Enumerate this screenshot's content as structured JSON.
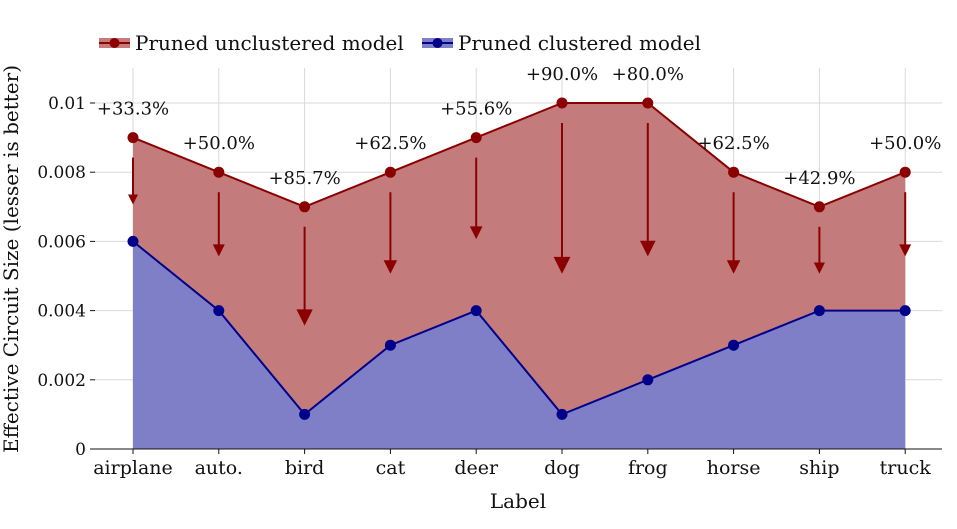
{
  "chart_data": {
    "type": "area",
    "categories": [
      "airplane",
      "auto.",
      "bird",
      "cat",
      "deer",
      "dog",
      "frog",
      "horse",
      "ship",
      "truck"
    ],
    "series": [
      {
        "name": "Pruned unclustered model",
        "values": [
          0.009,
          0.008,
          0.007,
          0.008,
          0.009,
          0.01,
          0.01,
          0.008,
          0.007,
          0.008
        ],
        "color": "#8b0000",
        "fill": "#c47b7b"
      },
      {
        "name": "Pruned clustered model",
        "values": [
          0.006,
          0.004,
          0.001,
          0.003,
          0.004,
          0.001,
          0.002,
          0.003,
          0.004,
          0.004
        ],
        "color": "#00008b",
        "fill": "#7f7fc7"
      }
    ],
    "annotations": [
      "+33.3%",
      "+50.0%",
      "+85.7%",
      "+62.5%",
      "+55.6%",
      "+90.0%",
      "+80.0%",
      "+62.5%",
      "+42.9%",
      "+50.0%"
    ],
    "xlabel": "Label",
    "ylabel": "Effective Circuit Size (lesser is better)",
    "ylim": [
      0,
      0.011
    ],
    "yticks": [
      0,
      0.002,
      0.004,
      0.006,
      0.008,
      0.01
    ],
    "ytick_labels": [
      "0",
      "0.002",
      "0.004",
      "0.006",
      "0.008",
      "0.01"
    ],
    "grid": true,
    "legend_position": "top-left"
  }
}
